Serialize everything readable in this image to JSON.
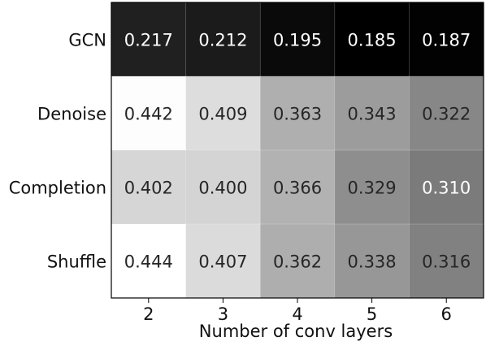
{
  "chart_data": {
    "type": "heatmap",
    "title": "",
    "xlabel": "Number of conv layers",
    "ylabel": "",
    "x_categories": [
      "2",
      "3",
      "4",
      "5",
      "6"
    ],
    "y_categories": [
      "GCN",
      "Denoise",
      "Completion",
      "Shuffle"
    ],
    "values": [
      [
        0.217,
        0.212,
        0.195,
        0.185,
        0.187
      ],
      [
        0.442,
        0.409,
        0.363,
        0.343,
        0.322
      ],
      [
        0.402,
        0.4,
        0.366,
        0.329,
        0.31
      ],
      [
        0.444,
        0.407,
        0.362,
        0.338,
        0.316
      ]
    ],
    "value_labels": [
      [
        "0.217",
        "0.212",
        "0.195",
        "0.185",
        "0.187"
      ],
      [
        "0.442",
        "0.409",
        "0.363",
        "0.343",
        "0.322"
      ],
      [
        "0.402",
        "0.400",
        "0.366",
        "0.329",
        "0.310"
      ],
      [
        "0.444",
        "0.407",
        "0.362",
        "0.338",
        "0.316"
      ]
    ],
    "colormap": "greys",
    "color_range": [
      0.185,
      0.444
    ],
    "grid": false,
    "legend": "none"
  }
}
